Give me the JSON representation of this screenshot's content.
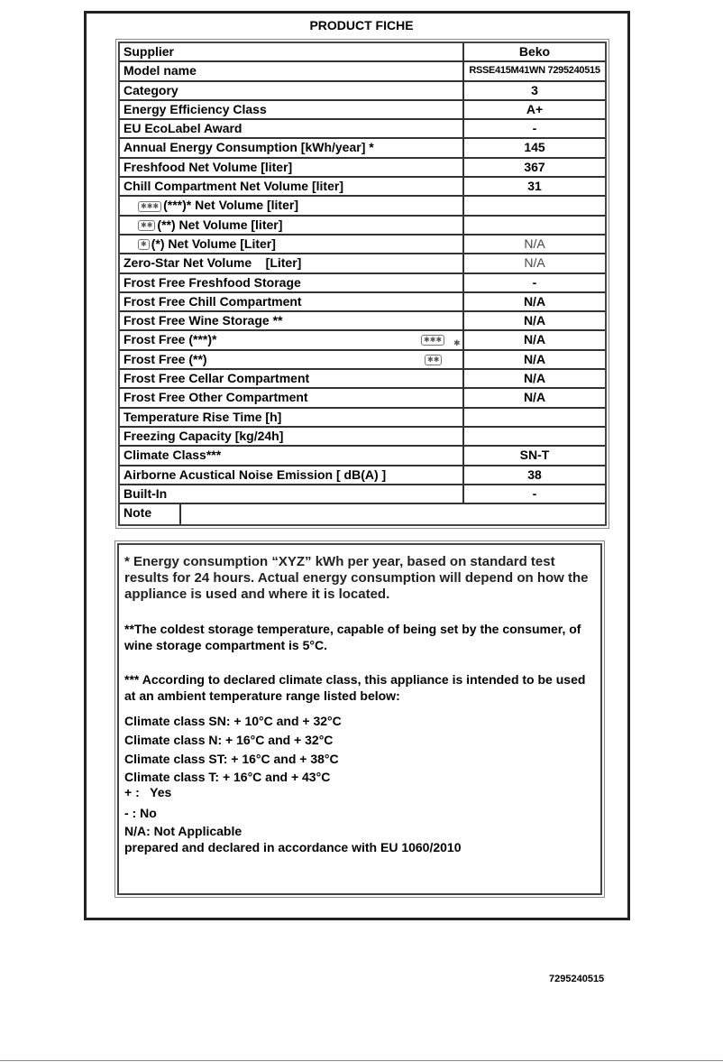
{
  "title": "PRODUCT FICHE",
  "rows": [
    {
      "label": "Supplier",
      "value": "Beko"
    },
    {
      "label": "Model name",
      "value": "RSSE415M41WN 7295240515"
    },
    {
      "label": "Category",
      "value": "3"
    },
    {
      "label": "Energy Efficiency Class",
      "value": "A+"
    },
    {
      "label": "EU EcoLabel Award",
      "value": "-"
    },
    {
      "label": "Annual Energy Consumption [kWh/year] *",
      "value": "145"
    },
    {
      "label": "Freshfood Net Volume [liter]",
      "value": "367"
    },
    {
      "label": "Chill Compartment Net Volume [liter]",
      "value": "31"
    },
    {
      "label": "(***)* Net Volume [liter]",
      "value": ""
    },
    {
      "label": "(**) Net Volume [liter]",
      "value": ""
    },
    {
      "label": "(*)  Net Volume [Liter]",
      "value": "N/A"
    },
    {
      "label": "Zero-Star Net Volume    [Liter]",
      "value": "N/A"
    },
    {
      "label": "Frost Free Freshfood Storage",
      "value": "-"
    },
    {
      "label": "Frost Free Chill Compartment",
      "value": "N/A"
    },
    {
      "label": "Frost Free Wine Storage **",
      "value": "N/A"
    },
    {
      "label": "Frost Free (***)*",
      "value": "N/A"
    },
    {
      "label": "Frost Free (**)",
      "value": "N/A"
    },
    {
      "label": "Frost Free Cellar Compartment",
      "value": "N/A"
    },
    {
      "label": "Frost Free Other Compartment",
      "value": "N/A"
    },
    {
      "label": "Temperature Rise Time [h]",
      "value": ""
    },
    {
      "label": "Freezing Capacity [kg/24h]",
      "value": ""
    },
    {
      "label": "Climate Class***",
      "value": "SN-T"
    },
    {
      "label": "Airborne Acustical Noise Emission [ dB(A) ]",
      "value": "38"
    },
    {
      "label": "Built-In",
      "value": "-"
    }
  ],
  "note_label": "Note",
  "icons": {
    "three_star": "✱✱✱",
    "four_star_tail": "✱",
    "two_star": "✱✱",
    "one_star": "✱"
  },
  "notes": {
    "energy": "* Energy consumption “XYZ” kWh per year, based on standard test results for 24 hours. Actual energy consumption will depend on how the appliance is used and where it is located.",
    "wine": "**The coldest storage temperature, capable of being set by  the consumer, of wine storage compartment is 5°C.",
    "climate": "*** According to declared climate class, this appliance is intended to be used at an ambient temperature range listed below:",
    "sn": "Climate class SN: + 10°C and + 32°C",
    "n": "Climate class N: + 16°C and + 32°C",
    "st": "Climate class ST: + 16°C and + 38°C",
    "t": "Climate class T: + 16°C and + 43°C",
    "yes": "+ :   Yes",
    "no": "- : No",
    "na": "N/A: Not Applicable",
    "declared": "prepared and declared in accordance with EU 1060/2010"
  },
  "footer_code": "7295240515"
}
